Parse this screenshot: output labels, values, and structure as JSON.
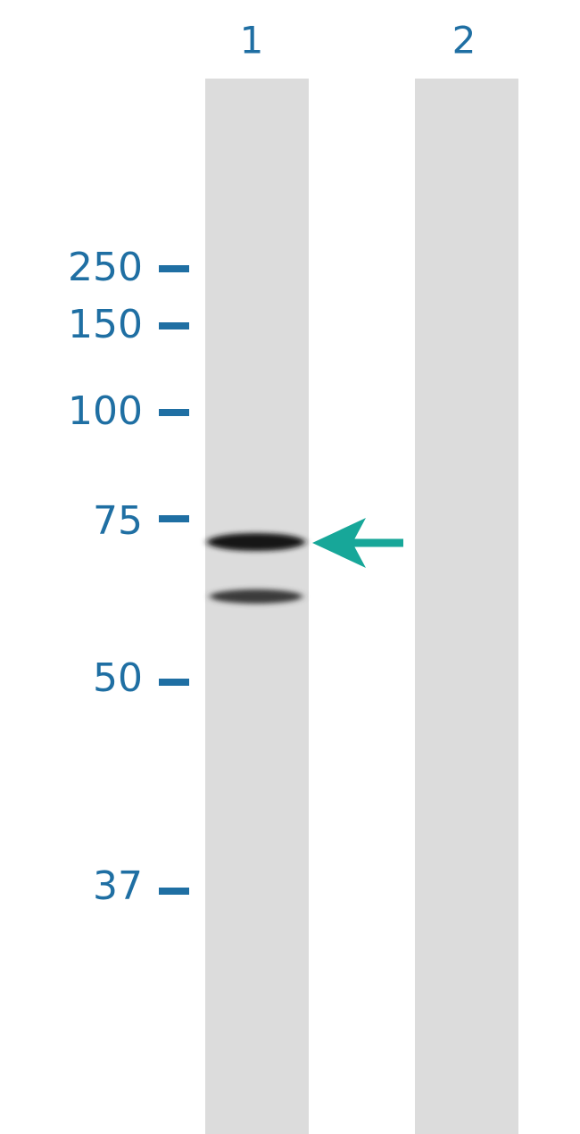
{
  "lanes": [
    {
      "label": "1"
    },
    {
      "label": "2"
    }
  ],
  "markers": [
    {
      "label": "250"
    },
    {
      "label": "150"
    },
    {
      "label": "100"
    },
    {
      "label": "75"
    },
    {
      "label": "50"
    },
    {
      "label": "37"
    }
  ]
}
